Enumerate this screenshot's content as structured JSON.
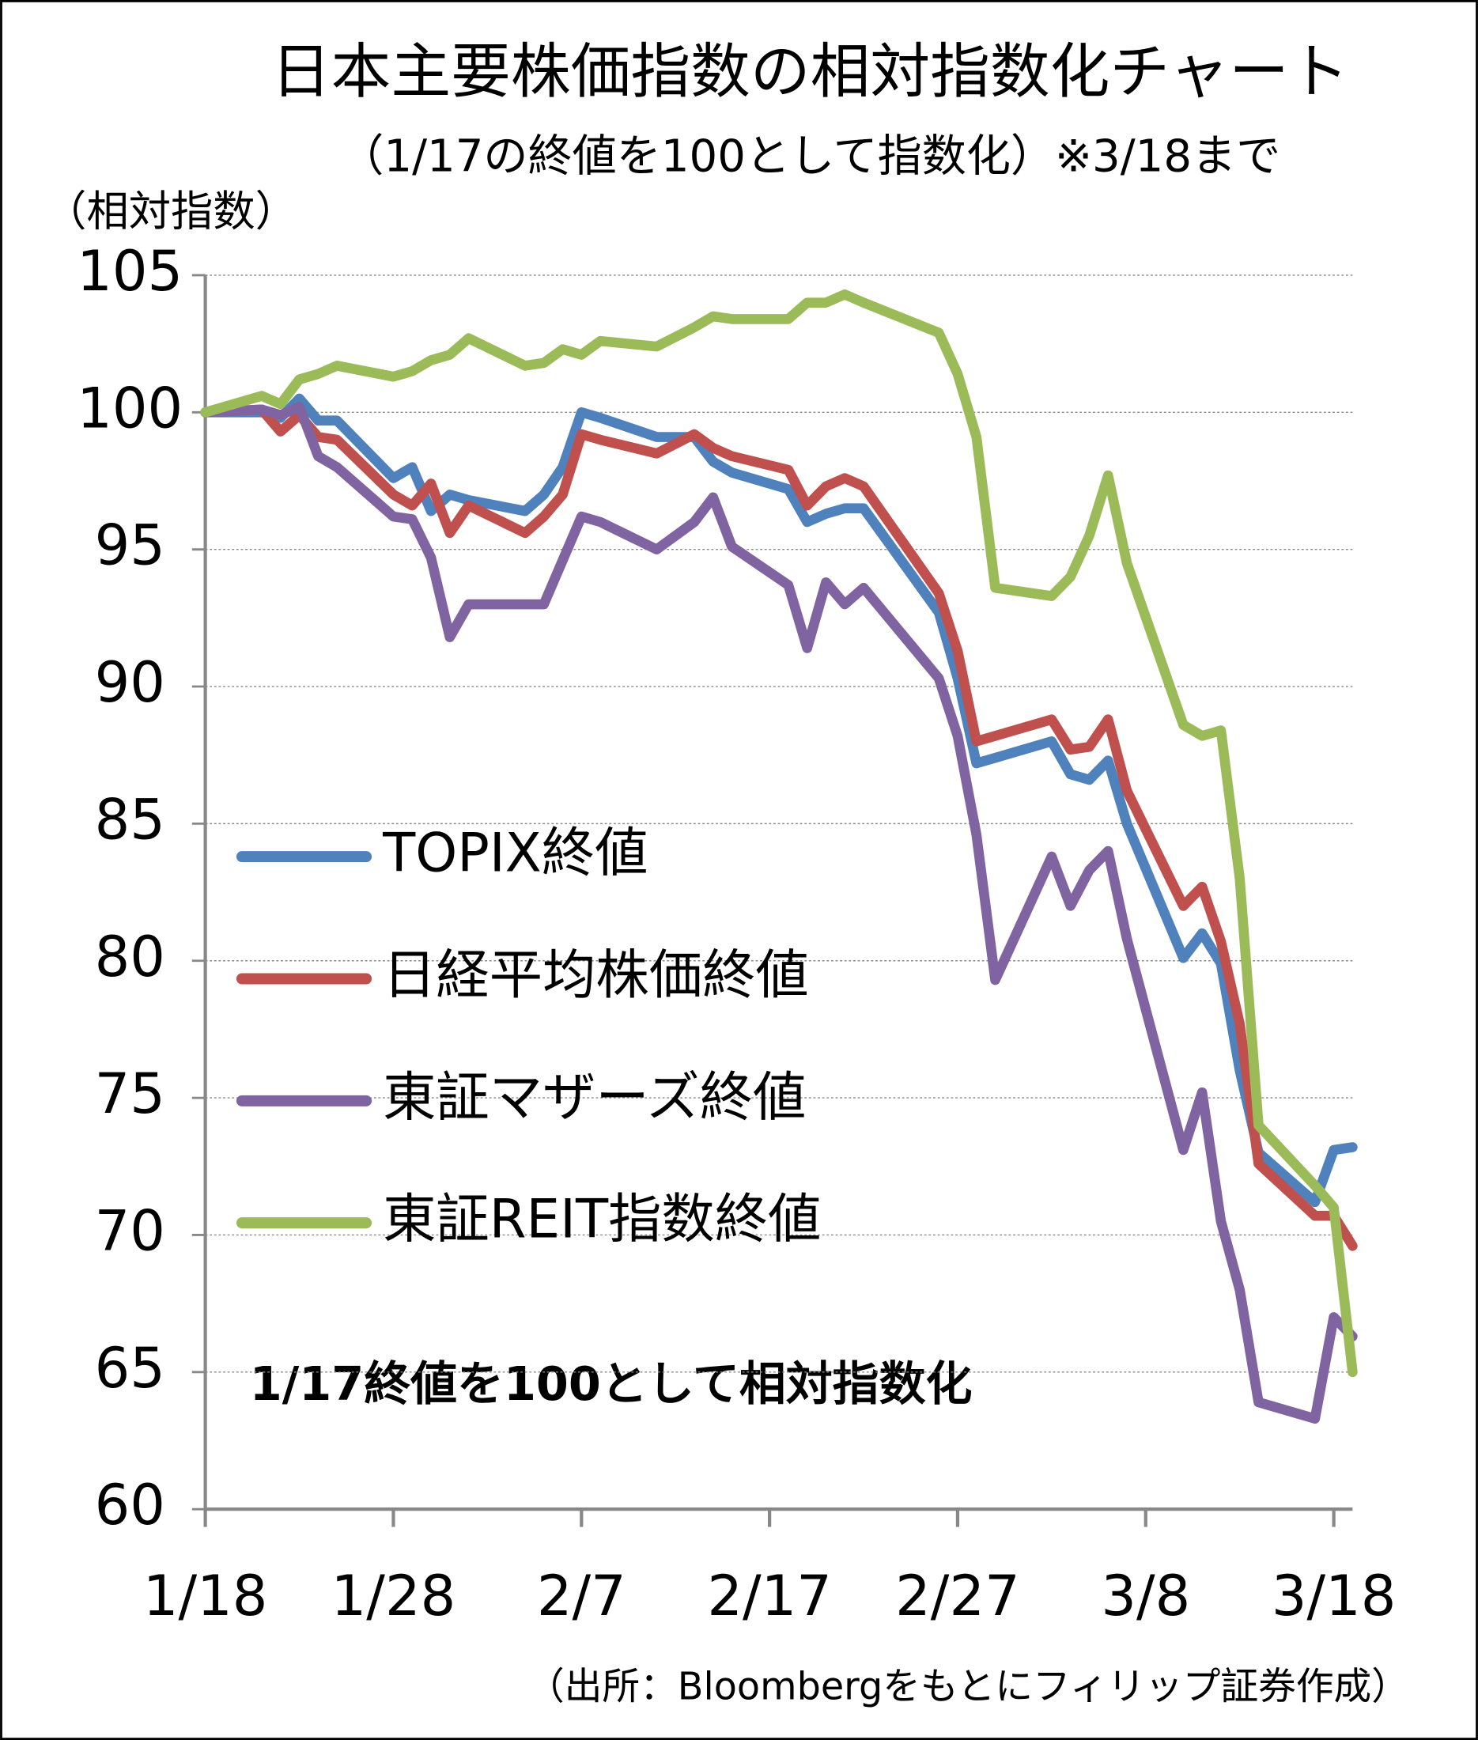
{
  "chart_data": {
    "type": "line",
    "title": "日本主要株価指数の相対指数化チャート",
    "subtitle": "（1/17の終値を100として指数化）※3/18まで",
    "y_label": "（相対指数）",
    "annotation": "1/17終値を100として相対指数化",
    "source": "（出所：Bloombergをもとにフィリップ証券作成）",
    "x": [
      "1/18",
      "1/21",
      "1/22",
      "1/23",
      "1/24",
      "1/25",
      "1/28",
      "1/29",
      "1/30",
      "1/31",
      "2/1",
      "2/4",
      "2/5",
      "2/6",
      "2/7",
      "2/8",
      "2/11",
      "2/13",
      "2/14",
      "2/15",
      "2/18",
      "2/19",
      "2/20",
      "2/21",
      "2/22",
      "2/26",
      "2/27",
      "2/28",
      "2/29",
      "3/3",
      "3/4",
      "3/5",
      "3/6",
      "3/7",
      "3/10",
      "3/11",
      "3/12",
      "3/13",
      "3/14",
      "3/17",
      "3/18",
      "3/19"
    ],
    "xlim": [
      "1/18",
      "3/19"
    ],
    "xticks": [
      "1/18",
      "1/28",
      "2/7",
      "2/17",
      "2/27",
      "3/8",
      "3/18"
    ],
    "ylim": [
      60,
      105
    ],
    "yticks": [
      60,
      65,
      70,
      75,
      80,
      85,
      90,
      95,
      100,
      105
    ],
    "grid": true,
    "legend": "left",
    "series": [
      {
        "name": "TOPIX終値",
        "color": "#4f81bd",
        "values": [
          100,
          100,
          99.8,
          100.5,
          99.7,
          99.7,
          97.6,
          98,
          96.4,
          97,
          96.8,
          96.4,
          97,
          98,
          100,
          99.8,
          99.1,
          99.1,
          98.2,
          97.8,
          97.2,
          96,
          96.3,
          96.5,
          96.5,
          92.7,
          90.3,
          87.2,
          87.4,
          88,
          86.8,
          86.6,
          87.3,
          85,
          80.1,
          81,
          79.9,
          76,
          73,
          71.2,
          73.1,
          73.2
        ]
      },
      {
        "name": "日経平均株価終値",
        "color": "#c0504d",
        "values": [
          100,
          100.1,
          99.3,
          99.9,
          99.1,
          99,
          97,
          96.6,
          97.4,
          95.6,
          96.6,
          95.6,
          96.2,
          97,
          99.2,
          99,
          98.5,
          99.2,
          98.7,
          98.4,
          97.9,
          96.6,
          97.3,
          97.6,
          97.3,
          93.4,
          91.3,
          88,
          88.2,
          88.8,
          87.7,
          87.8,
          88.8,
          86.2,
          82,
          82.7,
          80.7,
          77.7,
          72.6,
          70.7,
          70.7,
          69.6
        ]
      },
      {
        "name": "東証マザーズ終値",
        "color": "#8064a2",
        "values": [
          100,
          100.1,
          99.9,
          100.2,
          98.4,
          98,
          96.2,
          96.1,
          94.7,
          91.8,
          93,
          93,
          93,
          94.6,
          96.2,
          96,
          95,
          96,
          96.9,
          95.1,
          93.7,
          91.4,
          93.8,
          93,
          93.6,
          90.3,
          88.2,
          84.6,
          79.3,
          83.8,
          82,
          83.3,
          84,
          80.8,
          73.1,
          75.2,
          70.5,
          68,
          63.9,
          63.3,
          67,
          66.3
        ]
      },
      {
        "name": "東証REIT指数終値",
        "color": "#9bbb59",
        "values": [
          100,
          100.6,
          100.3,
          101.2,
          101.4,
          101.7,
          101.3,
          101.5,
          101.9,
          102.1,
          102.7,
          101.7,
          101.8,
          102.3,
          102.1,
          102.6,
          102.4,
          103.1,
          103.5,
          103.4,
          103.4,
          104,
          104,
          104.3,
          104,
          102.9,
          101.4,
          99.1,
          93.6,
          93.3,
          94,
          95.5,
          97.7,
          94.5,
          88.6,
          88.2,
          88.4,
          83,
          74,
          71.8,
          71,
          65
        ]
      }
    ]
  }
}
